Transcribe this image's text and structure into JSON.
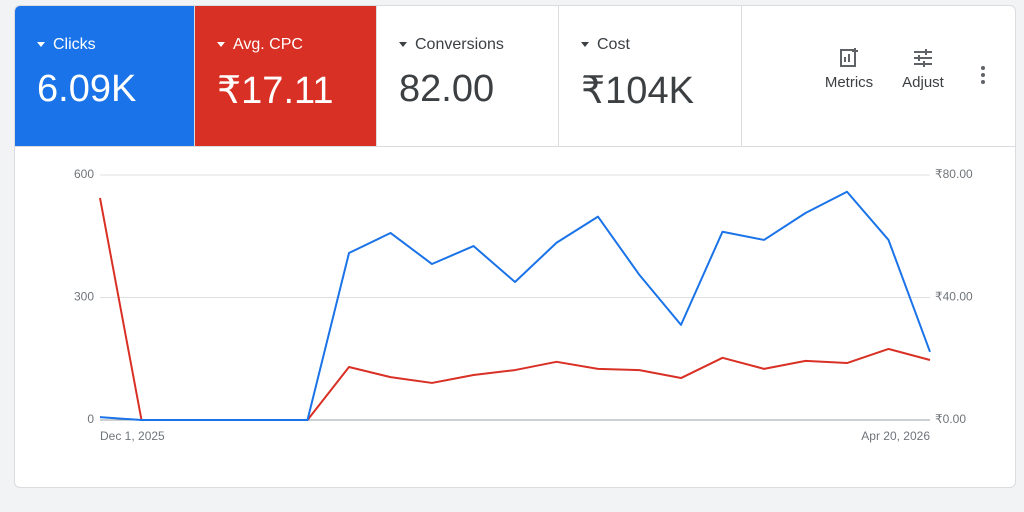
{
  "tiles": [
    {
      "label": "Clicks",
      "value": "6.09K"
    },
    {
      "label": "Avg. CPC",
      "value": "₹17.11"
    },
    {
      "label": "Conversions",
      "value": "82.00"
    },
    {
      "label": "Cost",
      "value": "₹104K"
    }
  ],
  "toolbar": {
    "metrics": "Metrics",
    "adjust": "Adjust"
  },
  "chart_data": {
    "type": "line",
    "categories": [
      "Dec 1, 2025",
      null,
      null,
      null,
      null,
      null,
      null,
      null,
      null,
      null,
      null,
      null,
      null,
      null,
      null,
      null,
      null,
      null,
      null,
      null,
      "Apr 20, 2026"
    ],
    "series": [
      {
        "color": "#1a73e8",
        "values": [
          7,
          0,
          0,
          0,
          0,
          0,
          409,
          458,
          382,
          426,
          338,
          434,
          498,
          355,
          233,
          461,
          441,
          507,
          559,
          441,
          167
        ]
      },
      {
        "color": "#d93025",
        "axis": "y2",
        "values": [
          72.5,
          0,
          0,
          0,
          0,
          0,
          17.3,
          14,
          12.1,
          14.7,
          16.3,
          19,
          16.7,
          16.3,
          13.7,
          20.3,
          16.7,
          19.3,
          18.6,
          23.2,
          19.6
        ]
      }
    ],
    "ylim": [
      0,
      600
    ],
    "yticks": [
      0,
      300,
      600
    ],
    "y2lim": [
      0,
      80
    ],
    "y2ticks": [
      {
        "value": 0,
        "label": "₹0.00"
      },
      {
        "value": 40,
        "label": "₹40.00"
      },
      {
        "value": 80,
        "label": "₹80.00"
      }
    ],
    "grid": true
  }
}
